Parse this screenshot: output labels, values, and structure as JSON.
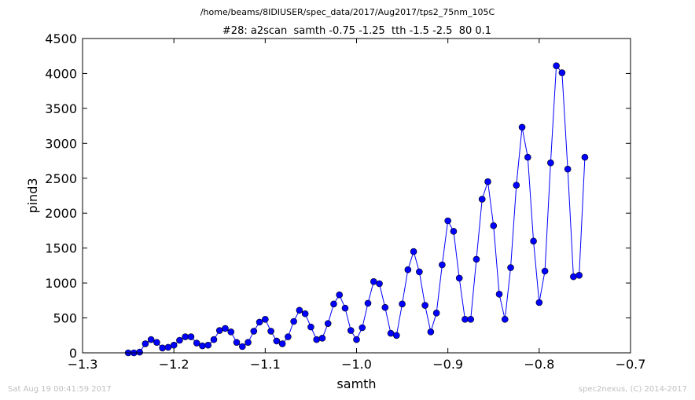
{
  "suptitle": "/home/beams/8IDIUSER/spec_data/2017/Aug2017/tps2_75nm_105C",
  "footer": {
    "timestamp": "Sat Aug 19 00:41:59 2017",
    "credit": "spec2nexus, (C) 2014-2017"
  },
  "chart_data": {
    "type": "line",
    "title": "#28: a2scan  samth -0.75 -1.25  tth -1.5 -2.5  80 0.1",
    "xlabel": "samth",
    "ylabel": "pind3",
    "xlim": [
      -1.3,
      -0.7
    ],
    "ylim": [
      0,
      4500
    ],
    "xticks": [
      -1.3,
      -1.2,
      -1.1,
      -1.0,
      -0.9,
      -0.8,
      -0.7
    ],
    "xtick_labels": [
      "−1.3",
      "−1.2",
      "−1.1",
      "−1.0",
      "−0.9",
      "−0.8",
      "−0.7"
    ],
    "yticks": [
      0,
      500,
      1000,
      1500,
      2000,
      2500,
      3000,
      3500,
      4000,
      4500
    ],
    "ytick_labels": [
      "0",
      "500",
      "1000",
      "1500",
      "2000",
      "2500",
      "3000",
      "3500",
      "4000",
      "4500"
    ],
    "grid": false,
    "color": "#0000ff",
    "marker": "circle",
    "series": [
      {
        "x": [
          -1.25,
          -1.24375,
          -1.2375,
          -1.23125,
          -1.225,
          -1.21875,
          -1.2125,
          -1.20625,
          -1.2,
          -1.19375,
          -1.1875,
          -1.18125,
          -1.175,
          -1.16875,
          -1.1625,
          -1.15625,
          -1.15,
          -1.14375,
          -1.1375,
          -1.13125,
          -1.125,
          -1.11875,
          -1.1125,
          -1.10625,
          -1.1,
          -1.09375,
          -1.0875,
          -1.08125,
          -1.075,
          -1.06875,
          -1.0625,
          -1.05625,
          -1.05,
          -1.04375,
          -1.0375,
          -1.03125,
          -1.025,
          -1.01875,
          -1.0125,
          -1.00625,
          -1.0,
          -0.99375,
          -0.9875,
          -0.98125,
          -0.975,
          -0.96875,
          -0.9625,
          -0.95625,
          -0.95,
          -0.94375,
          -0.9375,
          -0.93125,
          -0.925,
          -0.91875,
          -0.9125,
          -0.90625,
          -0.9,
          -0.89375,
          -0.8875,
          -0.88125,
          -0.875,
          -0.86875,
          -0.8625,
          -0.85625,
          -0.85,
          -0.84375,
          -0.8375,
          -0.83125,
          -0.825,
          -0.81875,
          -0.8125,
          -0.80625,
          -0.8,
          -0.79375,
          -0.7875,
          -0.78125,
          -0.775,
          -0.76875,
          -0.7625,
          -0.75625,
          -0.75
        ],
        "y": [
          0,
          0,
          10,
          130,
          190,
          150,
          70,
          80,
          110,
          180,
          230,
          230,
          140,
          100,
          110,
          190,
          320,
          350,
          300,
          150,
          90,
          150,
          310,
          440,
          480,
          310,
          170,
          130,
          230,
          450,
          610,
          560,
          370,
          190,
          210,
          420,
          700,
          830,
          640,
          320,
          190,
          360,
          710,
          1020,
          990,
          650,
          280,
          250,
          700,
          1190,
          1450,
          1160,
          680,
          300,
          570,
          1260,
          1890,
          1740,
          1070,
          480,
          480,
          1340,
          2200,
          2450,
          1820,
          840,
          480,
          1220,
          2400,
          3230,
          2800,
          1600,
          720,
          1170,
          2720,
          4110,
          4010,
          2630,
          1090,
          1110,
          2800
        ]
      }
    ]
  }
}
